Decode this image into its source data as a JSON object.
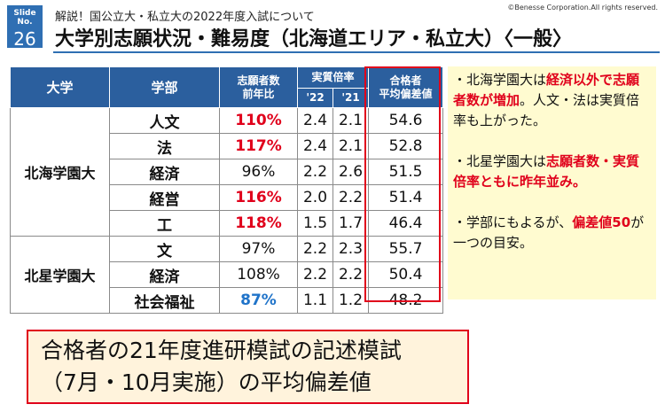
{
  "header": {
    "slide_label": "Slide No.",
    "slide_number": "26",
    "subtitle": "解説！国公立大・私立大の2022年度入試について",
    "title": "大学別志願状況・難易度（北海道エリア・私立大）〈一般〉",
    "copyright": "©Benesse Corporation.All rights reserved."
  },
  "table": {
    "headers": {
      "university": "大学",
      "faculty": "学部",
      "applicants_line1": "志願者数",
      "applicants_line2": "前年比",
      "ratio": "実質倍率",
      "ratio_22": "'22",
      "ratio_21": "'21",
      "passers_line1": "合格者",
      "passers_line2": "平均偏差値"
    },
    "groups": [
      {
        "university": "北海学園大",
        "rows": [
          {
            "faculty": "人文",
            "applicants": "110%",
            "r22": "2.4",
            "r21": "2.1",
            "dev": "54.6",
            "highlight": "red"
          },
          {
            "faculty": "法",
            "applicants": "117%",
            "r22": "2.4",
            "r21": "2.1",
            "dev": "52.8",
            "highlight": "red"
          },
          {
            "faculty": "経済",
            "applicants": "96%",
            "r22": "2.2",
            "r21": "2.6",
            "dev": "51.5",
            "highlight": "none"
          },
          {
            "faculty": "経営",
            "applicants": "116%",
            "r22": "2.0",
            "r21": "2.2",
            "dev": "51.4",
            "highlight": "red"
          },
          {
            "faculty": "工",
            "applicants": "118%",
            "r22": "1.5",
            "r21": "1.7",
            "dev": "46.4",
            "highlight": "red"
          }
        ]
      },
      {
        "university": "北星学園大",
        "rows": [
          {
            "faculty": "文",
            "applicants": "97%",
            "r22": "2.2",
            "r21": "2.3",
            "dev": "55.7",
            "highlight": "none"
          },
          {
            "faculty": "経済",
            "applicants": "108%",
            "r22": "2.2",
            "r21": "2.2",
            "dev": "50.4",
            "highlight": "none"
          },
          {
            "faculty": "社会福祉",
            "applicants": "87%",
            "r22": "1.1",
            "r21": "1.2",
            "dev": "48.2",
            "highlight": "blue"
          }
        ]
      }
    ]
  },
  "notes": {
    "n1_a": "・北海学園大は",
    "n1_b": "経済以外で志願者数が増加",
    "n1_c": "。人文・法は実質倍率も上がった。",
    "n2_a": "・北星学園大は",
    "n2_b": "志願者数・実質倍率ともに昨年並み。",
    "n3_a": "・学部にもよるが、",
    "n3_b": "偏差値50",
    "n3_c": "が一つの目安。"
  },
  "callout": {
    "line1": "合格者の21年度進研模試の記述模試",
    "line2": "（7月・10月実施）の平均偏差値"
  },
  "colors": {
    "accent_blue": "#2b5f9e",
    "highlight_red": "#e0001b",
    "highlight_blue": "#1f73c9",
    "note_bg": "#fffbd0",
    "callout_bg": "#fff3dc"
  }
}
